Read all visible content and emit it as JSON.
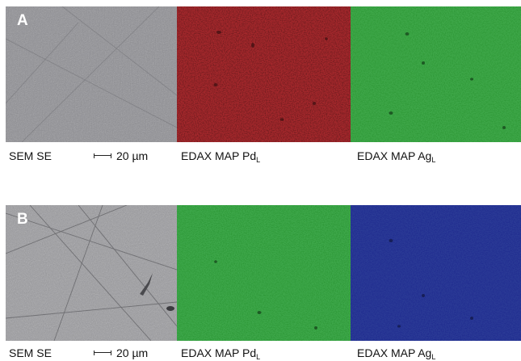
{
  "rows": [
    {
      "letter": "A",
      "panels": [
        {
          "kind": "sem",
          "color": "#8e8e93"
        },
        {
          "kind": "map",
          "color": "#a5282c"
        },
        {
          "kind": "map",
          "color": "#3fa84a"
        }
      ],
      "captions": {
        "sem": "SEM SE",
        "scale": "20 µm",
        "map1_prefix": "EDAX MAP Pd",
        "map1_sub": "L",
        "map2_prefix": "EDAX MAP Ag",
        "map2_sub": "L"
      }
    },
    {
      "letter": "B",
      "panels": [
        {
          "kind": "sem",
          "color": "#9a9a9e"
        },
        {
          "kind": "map",
          "color": "#3ea84b"
        },
        {
          "kind": "map",
          "color": "#2b3b96"
        }
      ],
      "captions": {
        "sem": "SEM SE",
        "scale": "20 µm",
        "map1_prefix": "EDAX MAP Pd",
        "map1_sub": "L",
        "map2_prefix": "EDAX MAP Ag",
        "map2_sub": "L"
      }
    }
  ]
}
